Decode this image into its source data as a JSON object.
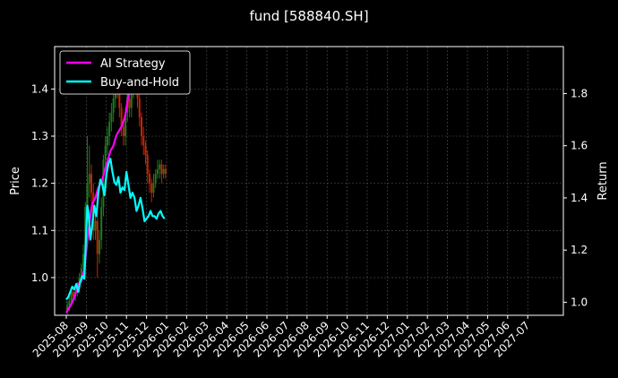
{
  "chart_data": {
    "type": "line",
    "title": "fund [588840.SH]",
    "xlabel": "",
    "ylabel_left": "Price",
    "ylabel_right": "Return",
    "x_tick_labels": [
      "2025-08",
      "2025-09",
      "2025-10",
      "2025-11",
      "2025-12",
      "2026-01",
      "2026-02",
      "2026-03",
      "2026-04",
      "2026-05",
      "2026-06",
      "2026-07",
      "2026-08",
      "2026-09",
      "2026-10",
      "2026-11",
      "2026-12",
      "2027-01",
      "2027-02",
      "2027-03",
      "2027-04",
      "2027-05",
      "2027-06",
      "2027-07"
    ],
    "xlim_months": [
      0,
      24
    ],
    "left_ylim": [
      0.92,
      1.49
    ],
    "left_yticks": [
      1.0,
      1.1,
      1.2,
      1.3,
      1.4
    ],
    "left_ytick_labels": [
      "1.0",
      "1.1",
      "1.2",
      "1.3",
      "1.4"
    ],
    "right_ylim": [
      0.95,
      1.98
    ],
    "right_yticks": [
      1.0,
      1.2,
      1.4,
      1.6,
      1.8
    ],
    "right_ytick_labels": [
      "1.0",
      "1.2",
      "1.4",
      "1.6",
      "1.8"
    ],
    "grid": true,
    "legend_position": "top-left",
    "candles": {
      "up_color": "#1e7a1e",
      "down_color": "#cc2200",
      "x": [
        0.05,
        0.15,
        0.25,
        0.35,
        0.45,
        0.55,
        0.65,
        0.75,
        0.85,
        0.95,
        1.05,
        1.15,
        1.25,
        1.35,
        1.45,
        1.55,
        1.65,
        1.75,
        1.85,
        1.95,
        2.05,
        2.15,
        2.25,
        2.35,
        2.45,
        2.55,
        2.65,
        2.75,
        2.85,
        2.95,
        3.05,
        3.15,
        3.25,
        3.35,
        3.45,
        3.55,
        3.65,
        3.75,
        3.85,
        3.95,
        4.05,
        4.15,
        4.25,
        4.35,
        4.45,
        4.55,
        4.65,
        4.75,
        4.85,
        4.95
      ],
      "open": [
        0.93,
        0.94,
        0.95,
        0.97,
        0.96,
        0.97,
        0.98,
        1.0,
        1.02,
        1.05,
        1.15,
        1.2,
        1.22,
        1.18,
        1.1,
        1.12,
        1.05,
        1.08,
        1.15,
        1.25,
        1.28,
        1.3,
        1.33,
        1.35,
        1.38,
        1.42,
        1.4,
        1.36,
        1.32,
        1.3,
        1.35,
        1.38,
        1.36,
        1.4,
        1.44,
        1.42,
        1.38,
        1.34,
        1.3,
        1.28,
        1.26,
        1.22,
        1.2,
        1.18,
        1.2,
        1.22,
        1.23,
        1.24,
        1.22,
        1.23
      ],
      "close": [
        0.94,
        0.95,
        0.97,
        0.96,
        0.97,
        0.98,
        1.0,
        1.02,
        1.05,
        1.15,
        1.2,
        1.22,
        1.18,
        1.1,
        1.12,
        1.05,
        1.08,
        1.15,
        1.25,
        1.28,
        1.3,
        1.33,
        1.35,
        1.38,
        1.42,
        1.4,
        1.36,
        1.32,
        1.3,
        1.35,
        1.38,
        1.36,
        1.4,
        1.44,
        1.42,
        1.38,
        1.34,
        1.3,
        1.28,
        1.26,
        1.22,
        1.2,
        1.18,
        1.2,
        1.22,
        1.23,
        1.24,
        1.22,
        1.23,
        1.22
      ],
      "high": [
        0.95,
        0.96,
        0.98,
        0.98,
        0.98,
        0.99,
        1.01,
        1.03,
        1.07,
        1.16,
        1.3,
        1.28,
        1.24,
        1.2,
        1.14,
        1.13,
        1.1,
        1.17,
        1.26,
        1.3,
        1.32,
        1.35,
        1.37,
        1.4,
        1.44,
        1.43,
        1.41,
        1.37,
        1.33,
        1.36,
        1.4,
        1.39,
        1.42,
        1.45,
        1.45,
        1.43,
        1.39,
        1.35,
        1.32,
        1.29,
        1.27,
        1.23,
        1.21,
        1.22,
        1.23,
        1.25,
        1.25,
        1.25,
        1.24,
        1.24
      ],
      "low": [
        0.92,
        0.93,
        0.94,
        0.95,
        0.95,
        0.96,
        0.97,
        0.99,
        1.01,
        1.04,
        1.12,
        1.17,
        1.16,
        1.08,
        1.08,
        1.0,
        1.03,
        1.06,
        1.13,
        1.23,
        1.26,
        1.28,
        1.31,
        1.33,
        1.36,
        1.38,
        1.34,
        1.3,
        1.28,
        1.28,
        1.33,
        1.34,
        1.34,
        1.38,
        1.4,
        1.36,
        1.32,
        1.28,
        1.26,
        1.24,
        1.2,
        1.18,
        1.16,
        1.17,
        1.19,
        1.21,
        1.21,
        1.2,
        1.21,
        1.21
      ]
    },
    "series": [
      {
        "name": "AI Strategy",
        "color": "#ff00ff",
        "axis": "right",
        "x": [
          0.0,
          0.15,
          0.3,
          0.45,
          0.6,
          0.75,
          0.9,
          1.0,
          1.1,
          1.2,
          1.3,
          1.45,
          1.6,
          1.75,
          1.9,
          2.05,
          2.2,
          2.35,
          2.5,
          2.65,
          2.8,
          2.95,
          3.05,
          3.15,
          3.3,
          3.45,
          3.6,
          3.75,
          3.9
        ],
        "values": [
          0.96,
          0.98,
          1.0,
          1.03,
          1.07,
          1.08,
          1.13,
          1.2,
          1.27,
          1.33,
          1.38,
          1.4,
          1.44,
          1.46,
          1.5,
          1.54,
          1.58,
          1.6,
          1.64,
          1.66,
          1.68,
          1.72,
          1.77,
          1.82,
          1.84,
          1.86,
          1.86,
          1.87,
          1.86
        ]
      },
      {
        "name": "Buy-and-Hold",
        "color": "#00ffff",
        "axis": "right",
        "x": [
          0.0,
          0.1,
          0.2,
          0.3,
          0.4,
          0.5,
          0.6,
          0.7,
          0.8,
          0.9,
          1.0,
          1.05,
          1.1,
          1.2,
          1.3,
          1.4,
          1.5,
          1.6,
          1.7,
          1.8,
          1.9,
          2.0,
          2.1,
          2.2,
          2.3,
          2.4,
          2.5,
          2.6,
          2.7,
          2.8,
          2.9,
          3.0,
          3.1,
          3.2,
          3.3,
          3.4,
          3.5,
          3.6,
          3.7,
          3.8,
          3.9,
          4.0,
          4.1,
          4.2,
          4.3,
          4.4,
          4.5,
          4.6,
          4.7,
          4.8,
          4.9
        ],
        "values": [
          1.01,
          1.02,
          1.04,
          1.06,
          1.05,
          1.07,
          1.04,
          1.08,
          1.1,
          1.09,
          1.28,
          1.37,
          1.35,
          1.24,
          1.3,
          1.37,
          1.33,
          1.42,
          1.47,
          1.45,
          1.41,
          1.49,
          1.53,
          1.55,
          1.5,
          1.46,
          1.45,
          1.48,
          1.42,
          1.44,
          1.43,
          1.5,
          1.45,
          1.4,
          1.42,
          1.4,
          1.35,
          1.37,
          1.4,
          1.36,
          1.31,
          1.32,
          1.33,
          1.35,
          1.33,
          1.33,
          1.32,
          1.34,
          1.35,
          1.33,
          1.32
        ]
      }
    ]
  }
}
